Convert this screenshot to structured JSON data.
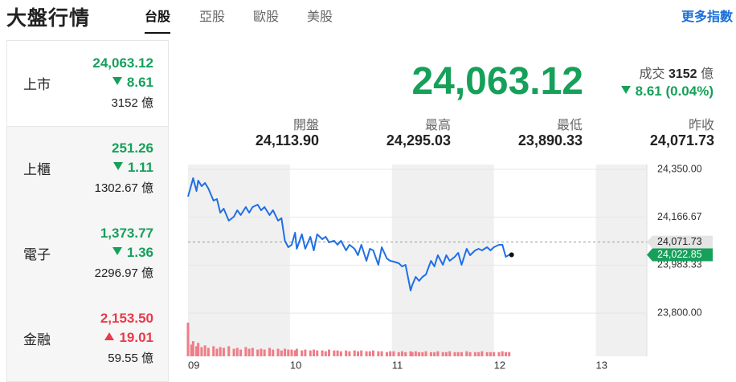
{
  "header": {
    "title": "大盤行情",
    "tabs": [
      {
        "label": "台股",
        "active": true
      },
      {
        "label": "亞股",
        "active": false
      },
      {
        "label": "歐股",
        "active": false
      },
      {
        "label": "美股",
        "active": false
      }
    ],
    "more_link": "更多指數"
  },
  "sidebar": [
    {
      "name": "上市",
      "value": "24,063.12",
      "change": "8.61",
      "direction": "down",
      "volume": "3152 億",
      "selected": true
    },
    {
      "name": "上櫃",
      "value": "251.26",
      "change": "1.11",
      "direction": "down",
      "volume": "1302.67 億",
      "selected": false
    },
    {
      "name": "電子",
      "value": "1,373.77",
      "change": "1.36",
      "direction": "down",
      "volume": "2296.97 億",
      "selected": false
    },
    {
      "name": "金融",
      "value": "2,153.50",
      "change": "19.01",
      "direction": "up",
      "volume": "59.55 億",
      "selected": false
    }
  ],
  "quote": {
    "price": "24,063.12",
    "turnover_label": "成交",
    "turnover": "3152",
    "turnover_unit": "億",
    "change": "8.61 (0.04%)",
    "direction": "down",
    "stats": [
      {
        "label": "開盤",
        "value": "24,113.90"
      },
      {
        "label": "最高",
        "value": "24,295.03"
      },
      {
        "label": "最低",
        "value": "23,890.33"
      },
      {
        "label": "昨收",
        "value": "24,071.73"
      }
    ]
  },
  "chart_data": {
    "type": "line",
    "color": "#1f6fe5",
    "volume_color": "#ef7d87",
    "grid": true,
    "x": [
      0,
      2,
      3,
      5,
      6,
      8,
      10,
      12,
      15,
      17,
      19,
      21,
      24,
      27,
      29,
      31,
      34,
      36,
      38,
      41,
      43,
      45,
      48,
      50,
      53,
      55,
      57,
      59,
      61,
      63,
      64,
      67,
      69,
      72,
      74,
      76,
      79,
      81,
      83,
      86,
      88,
      90,
      93,
      95,
      98,
      100,
      102,
      105,
      107,
      109,
      112,
      114,
      117,
      119,
      121,
      124,
      126,
      128,
      131,
      132,
      134,
      136,
      138,
      140,
      143,
      145,
      147,
      150,
      152,
      154,
      157,
      159,
      161,
      164,
      166,
      169,
      171,
      173,
      176,
      178,
      180,
      183,
      185,
      187,
      189
    ],
    "values": [
      24245.6,
      24291.7,
      24316.2,
      24267.1,
      24307.0,
      24285.5,
      24297.8,
      24276.3,
      24230.2,
      24236.4,
      24184.2,
      24199.5,
      24153.5,
      24168.8,
      24193.4,
      24175.0,
      24205.7,
      24184.2,
      24205.7,
      24214.9,
      24193.4,
      24205.7,
      24175.0,
      24193.4,
      24153.5,
      24162.7,
      24076.7,
      24052.1,
      24061.3,
      24107.4,
      24046.0,
      24101.2,
      24046.0,
      24092.0,
      24039.8,
      24101.2,
      24082.8,
      24092.0,
      24070.5,
      24076.7,
      24061.3,
      24076.7,
      24039.8,
      24061.3,
      24046.0,
      24021.4,
      24061.3,
      23999.9,
      24046.0,
      24039.8,
      23984.6,
      24052.1,
      24009.1,
      23999.9,
      23996.8,
      23990.7,
      23978.4,
      23984.6,
      23886.3,
      23907.8,
      23938.5,
      23923.1,
      23938.5,
      23947.7,
      23999.9,
      23978.4,
      24021.4,
      23984.6,
      24021.4,
      23999.9,
      24015.3,
      24030.6,
      23984.6,
      24046.0,
      24021.4,
      24039.8,
      24046.0,
      24039.8,
      24052.1,
      24039.8,
      24052.1,
      24061.3,
      24061.3,
      24015.3,
      24022.85
    ],
    "volume": [
      40,
      14,
      18,
      12,
      16,
      11,
      13,
      10,
      12,
      9,
      11,
      10,
      12,
      9,
      10,
      8,
      11,
      9,
      10,
      8,
      9,
      8,
      10,
      8,
      9,
      7,
      9,
      8,
      8,
      7,
      9,
      7,
      8,
      7,
      8,
      7,
      7,
      6,
      8,
      7,
      7,
      6,
      7,
      6,
      7,
      6,
      7,
      6,
      6,
      7,
      6,
      6,
      5,
      6,
      6,
      5,
      6,
      5,
      6,
      5,
      6,
      5,
      5,
      6,
      5,
      5,
      6,
      5,
      5,
      6,
      5,
      5,
      5,
      6,
      5,
      5,
      5,
      6,
      5,
      5,
      5,
      5,
      6,
      5,
      5
    ],
    "xlim": [
      0,
      270
    ],
    "xticks": [
      {
        "value": 0,
        "label": "09"
      },
      {
        "value": 60,
        "label": "10"
      },
      {
        "value": 120,
        "label": "11"
      },
      {
        "value": 180,
        "label": "12"
      },
      {
        "value": 240,
        "label": "13"
      }
    ],
    "ylim": [
      23634.5,
      24368.4
    ],
    "yticks": [
      {
        "value": 24350,
        "label": "24,350.00"
      },
      {
        "value": 24166.67,
        "label": "24,166.67"
      },
      {
        "value": 23983.33,
        "label": "23,983.33"
      },
      {
        "value": 23800,
        "label": "23,800.00"
      }
    ],
    "reference_line": {
      "value": 24071.73,
      "label": "24,071.73"
    },
    "last_label": {
      "value": 24022.85,
      "label": "24,022.85"
    }
  }
}
